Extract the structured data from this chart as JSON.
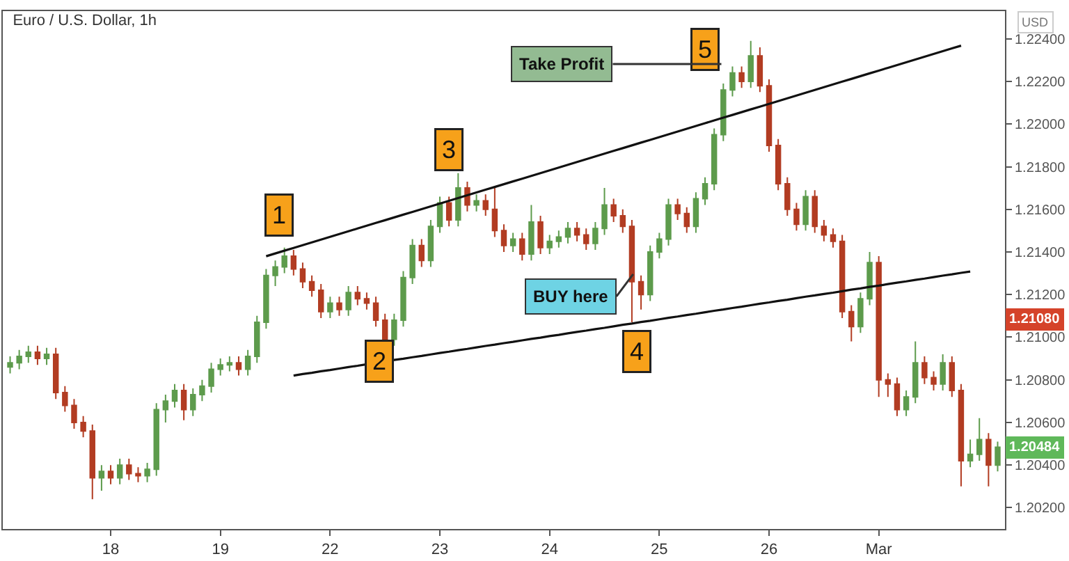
{
  "chart_data": {
    "type": "candlestick",
    "title": "Euro / U.S. Dollar, 1h",
    "categories": [
      null,
      null,
      null,
      null,
      null,
      null,
      null,
      null,
      null,
      null,
      null,
      "18",
      null,
      null,
      null,
      null,
      null,
      null,
      null,
      null,
      null,
      null,
      null,
      "19",
      null,
      null,
      null,
      null,
      null,
      null,
      null,
      null,
      null,
      null,
      null,
      "22",
      null,
      null,
      null,
      null,
      null,
      null,
      null,
      null,
      null,
      null,
      null,
      "23",
      null,
      null,
      null,
      null,
      null,
      null,
      null,
      null,
      null,
      null,
      null,
      "24",
      null,
      null,
      null,
      null,
      null,
      null,
      null,
      null,
      null,
      null,
      null,
      "25",
      null,
      null,
      null,
      null,
      null,
      null,
      null,
      null,
      null,
      null,
      null,
      "26",
      null,
      null,
      null,
      null,
      null,
      null,
      null,
      null,
      null,
      null,
      null,
      "Mar",
      null,
      null,
      null,
      null,
      null,
      null,
      null,
      null,
      null,
      null,
      null,
      null,
      null
    ],
    "ohlc": [
      [
        1.2086,
        1.2091,
        1.2083,
        1.2088
      ],
      [
        1.2088,
        1.2094,
        1.2085,
        1.2091
      ],
      [
        1.2091,
        1.2096,
        1.2088,
        1.2093
      ],
      [
        1.2093,
        1.2096,
        1.2087,
        1.209
      ],
      [
        1.209,
        1.2095,
        1.2087,
        1.2092
      ],
      [
        1.2092,
        1.2095,
        1.2071,
        1.2074
      ],
      [
        1.2074,
        1.2077,
        1.2065,
        1.2068
      ],
      [
        1.2068,
        1.2071,
        1.2057,
        1.206
      ],
      [
        1.206,
        1.2063,
        1.2053,
        1.2056
      ],
      [
        1.2056,
        1.2059,
        1.2024,
        1.2034
      ],
      [
        1.2034,
        1.204,
        1.2028,
        1.2037
      ],
      [
        1.2037,
        1.204,
        1.2031,
        1.2034
      ],
      [
        1.2034,
        1.2043,
        1.2031,
        1.204
      ],
      [
        1.204,
        1.2043,
        1.2033,
        1.2036
      ],
      [
        1.2036,
        1.2039,
        1.2032,
        1.2035
      ],
      [
        1.2035,
        1.2041,
        1.2032,
        1.2038
      ],
      [
        1.2038,
        1.2069,
        1.2035,
        1.2066
      ],
      [
        1.2066,
        1.2073,
        1.206,
        1.207
      ],
      [
        1.207,
        1.2078,
        1.2067,
        1.2075
      ],
      [
        1.2075,
        1.2078,
        1.2061,
        1.2066
      ],
      [
        1.2066,
        1.2076,
        1.2063,
        1.2073
      ],
      [
        1.2073,
        1.208,
        1.207,
        1.2077
      ],
      [
        1.2077,
        1.2088,
        1.2074,
        1.2085
      ],
      [
        1.2085,
        1.209,
        1.2082,
        1.2087
      ],
      [
        1.2087,
        1.2091,
        1.2084,
        1.2088
      ],
      [
        1.2088,
        1.2091,
        1.2082,
        1.2085
      ],
      [
        1.2085,
        1.2094,
        1.2082,
        1.2091
      ],
      [
        1.2091,
        1.211,
        1.2088,
        1.2107
      ],
      [
        1.2107,
        1.2132,
        1.2104,
        1.2129
      ],
      [
        1.2129,
        1.2136,
        1.2124,
        1.2133
      ],
      [
        1.2133,
        1.2142,
        1.213,
        1.2138
      ],
      [
        1.2138,
        1.2141,
        1.2129,
        1.2132
      ],
      [
        1.2132,
        1.2135,
        1.2123,
        1.2126
      ],
      [
        1.2126,
        1.2129,
        1.2119,
        1.2122
      ],
      [
        1.2122,
        1.2125,
        1.2109,
        1.2112
      ],
      [
        1.2112,
        1.2119,
        1.2109,
        1.2116
      ],
      [
        1.2116,
        1.2119,
        1.211,
        1.2113
      ],
      [
        1.2113,
        1.2124,
        1.211,
        1.2121
      ],
      [
        1.2121,
        1.2124,
        1.2115,
        1.2118
      ],
      [
        1.2118,
        1.2121,
        1.2113,
        1.2116
      ],
      [
        1.2116,
        1.2119,
        1.2105,
        1.2108
      ],
      [
        1.2108,
        1.2111,
        1.209,
        1.2099
      ],
      [
        1.2099,
        1.2111,
        1.2096,
        1.2108
      ],
      [
        1.2108,
        1.2131,
        1.2105,
        1.2128
      ],
      [
        1.2128,
        1.2146,
        1.2125,
        1.2143
      ],
      [
        1.2143,
        1.2146,
        1.2133,
        1.2136
      ],
      [
        1.2136,
        1.2155,
        1.2133,
        1.2152
      ],
      [
        1.2152,
        1.2166,
        1.2149,
        1.2163
      ],
      [
        1.2163,
        1.2166,
        1.2152,
        1.2155
      ],
      [
        1.2155,
        1.2177,
        1.2152,
        1.217
      ],
      [
        1.217,
        1.2173,
        1.2159,
        1.2162
      ],
      [
        1.2162,
        1.2167,
        1.2159,
        1.2164
      ],
      [
        1.2164,
        1.2167,
        1.2157,
        1.216
      ],
      [
        1.216,
        1.217,
        1.2147,
        1.215
      ],
      [
        1.215,
        1.2153,
        1.214,
        1.2143
      ],
      [
        1.2143,
        1.2149,
        1.214,
        1.2146
      ],
      [
        1.2146,
        1.2149,
        1.2136,
        1.2139
      ],
      [
        1.2139,
        1.2162,
        1.2136,
        1.2154
      ],
      [
        1.2154,
        1.2157,
        1.2139,
        1.2142
      ],
      [
        1.2142,
        1.2148,
        1.2139,
        1.2145
      ],
      [
        1.2145,
        1.215,
        1.2142,
        1.2147
      ],
      [
        1.2147,
        1.2154,
        1.2144,
        1.2151
      ],
      [
        1.2151,
        1.2154,
        1.2145,
        1.2148
      ],
      [
        1.2148,
        1.2151,
        1.2141,
        1.2144
      ],
      [
        1.2144,
        1.2154,
        1.2141,
        1.2151
      ],
      [
        1.2151,
        1.217,
        1.2148,
        1.2162
      ],
      [
        1.2162,
        1.2165,
        1.2154,
        1.2157
      ],
      [
        1.2157,
        1.216,
        1.2149,
        1.2152
      ],
      [
        1.2152,
        1.2155,
        1.2107,
        1.2126
      ],
      [
        1.2126,
        1.2129,
        1.2113,
        1.212
      ],
      [
        1.212,
        1.2143,
        1.2117,
        1.214
      ],
      [
        1.214,
        1.2149,
        1.2137,
        1.2146
      ],
      [
        1.2146,
        1.2165,
        1.2143,
        1.2162
      ],
      [
        1.2162,
        1.2165,
        1.2155,
        1.2158
      ],
      [
        1.2158,
        1.2161,
        1.2149,
        1.2152
      ],
      [
        1.2152,
        1.2168,
        1.2149,
        1.2165
      ],
      [
        1.2165,
        1.2175,
        1.2162,
        1.2172
      ],
      [
        1.2172,
        1.2198,
        1.2169,
        1.2195
      ],
      [
        1.2195,
        1.2219,
        1.2192,
        1.2216
      ],
      [
        1.2216,
        1.2227,
        1.2213,
        1.2224
      ],
      [
        1.2224,
        1.2227,
        1.2217,
        1.222
      ],
      [
        1.222,
        1.2239,
        1.2217,
        1.2232
      ],
      [
        1.2232,
        1.2236,
        1.2215,
        1.2218
      ],
      [
        1.2218,
        1.2221,
        1.2187,
        1.219
      ],
      [
        1.219,
        1.2193,
        1.2169,
        1.2172
      ],
      [
        1.2172,
        1.2175,
        1.2157,
        1.216
      ],
      [
        1.216,
        1.2163,
        1.215,
        1.2153
      ],
      [
        1.2153,
        1.2169,
        1.215,
        1.2166
      ],
      [
        1.2166,
        1.2169,
        1.2149,
        1.2152
      ],
      [
        1.2152,
        1.2155,
        1.2145,
        1.2148
      ],
      [
        1.2148,
        1.2151,
        1.2142,
        1.2145
      ],
      [
        1.2145,
        1.2148,
        1.2109,
        1.2112
      ],
      [
        1.2112,
        1.2115,
        1.2098,
        1.2105
      ],
      [
        1.2105,
        1.2121,
        1.2102,
        1.2118
      ],
      [
        1.2118,
        1.214,
        1.2115,
        1.2135
      ],
      [
        1.2135,
        1.2138,
        1.2072,
        1.208
      ],
      [
        1.208,
        1.2083,
        1.2072,
        1.2078
      ],
      [
        1.2078,
        1.2081,
        1.2063,
        1.2066
      ],
      [
        1.2066,
        1.2075,
        1.2063,
        1.2072
      ],
      [
        1.2072,
        1.2098,
        1.2069,
        1.2088
      ],
      [
        1.2088,
        1.2091,
        1.2078,
        1.2081
      ],
      [
        1.2081,
        1.2084,
        1.2075,
        1.2078
      ],
      [
        1.2078,
        1.2092,
        1.2075,
        1.2088
      ],
      [
        1.2088,
        1.2091,
        1.2072,
        1.2075
      ],
      [
        1.2075,
        1.2078,
        1.203,
        1.2042
      ],
      [
        1.2042,
        1.2052,
        1.2039,
        1.2045
      ],
      [
        1.2045,
        1.2062,
        1.2042,
        1.2052
      ],
      [
        1.2052,
        1.2055,
        1.203,
        1.204
      ],
      [
        1.204,
        1.2051,
        1.2037,
        1.20484
      ]
    ],
    "series": [
      {
        "type": "line",
        "color": "#111111",
        "values": [
          null,
          null,
          null,
          null,
          null,
          null,
          null,
          null,
          null,
          null,
          null,
          null,
          null,
          null,
          null,
          null,
          null,
          null,
          null,
          null,
          null,
          null,
          null,
          null,
          null,
          null,
          null,
          null,
          1.2138,
          1.21393,
          1.21406,
          1.21419,
          1.21432,
          1.21445,
          1.21458,
          1.21471,
          1.21484,
          1.21497,
          1.2151,
          1.21523,
          1.21536,
          1.21549,
          1.21562,
          1.21575,
          1.21588,
          1.21601,
          1.21614,
          1.21627,
          1.2164,
          1.21653,
          1.21666,
          1.21679,
          1.21692,
          1.21705,
          1.21718,
          1.21731,
          1.21744,
          1.21757,
          1.2177,
          1.21783,
          1.21796,
          1.21809,
          1.21822,
          1.21835,
          1.21848,
          1.21861,
          1.21874,
          1.21887,
          1.219,
          1.21913,
          1.21926,
          1.21939,
          1.21952,
          1.21965,
          1.21978,
          1.21991,
          1.22004,
          1.22017,
          1.2203,
          1.22043,
          1.22056,
          1.22069,
          1.22082,
          1.22095,
          1.22108,
          1.22121,
          1.22134,
          1.22147,
          1.2216,
          1.22173,
          1.22186,
          1.22199,
          1.22212,
          1.22225,
          1.22238,
          1.22251,
          1.22264,
          1.22277,
          1.2229,
          1.22303,
          1.22316,
          1.22329,
          1.22342,
          1.22355,
          1.22368,
          null,
          null,
          null,
          null
        ]
      },
      {
        "type": "line",
        "color": "#111111",
        "values": [
          null,
          null,
          null,
          null,
          null,
          null,
          null,
          null,
          null,
          null,
          null,
          null,
          null,
          null,
          null,
          null,
          null,
          null,
          null,
          null,
          null,
          null,
          null,
          null,
          null,
          null,
          null,
          null,
          null,
          null,
          null,
          1.2082,
          1.20827,
          1.20833,
          1.2084,
          1.20846,
          1.20853,
          1.2086,
          1.20866,
          1.20873,
          1.20879,
          1.20886,
          1.20893,
          1.20899,
          1.20906,
          1.20912,
          1.20919,
          1.20926,
          1.20932,
          1.20939,
          1.20945,
          1.20952,
          1.20959,
          1.20965,
          1.20972,
          1.20978,
          1.20985,
          1.20992,
          1.20998,
          1.21005,
          1.21011,
          1.21018,
          1.21025,
          1.21031,
          1.21038,
          1.21044,
          1.21051,
          1.21058,
          1.21064,
          1.21071,
          1.21077,
          1.21084,
          1.21091,
          1.21097,
          1.21104,
          1.2111,
          1.21117,
          1.21124,
          1.2113,
          1.21137,
          1.21143,
          1.2115,
          1.21157,
          1.21163,
          1.2117,
          1.21176,
          1.21183,
          1.2119,
          1.21196,
          1.21203,
          1.21209,
          1.21216,
          1.21223,
          1.21229,
          1.21236,
          1.21242,
          1.21249,
          1.21256,
          1.21262,
          1.21269,
          1.21275,
          1.21282,
          1.21289,
          1.21295,
          1.21302,
          1.21308,
          null,
          null,
          null
        ]
      }
    ],
    "ylim": [
      1.201,
      1.2253
    ],
    "yticks": [
      {
        "value": 1.202,
        "label": "1.20200"
      },
      {
        "value": 1.204,
        "label": "1.20400"
      },
      {
        "value": 1.206,
        "label": "1.20600"
      },
      {
        "value": 1.208,
        "label": "1.20800"
      },
      {
        "value": 1.21,
        "label": "1.21000"
      },
      {
        "value": 1.212,
        "label": "1.21200"
      },
      {
        "value": 1.214,
        "label": "1.21400"
      },
      {
        "value": 1.216,
        "label": "1.21600"
      },
      {
        "value": 1.218,
        "label": "1.21800"
      },
      {
        "value": 1.22,
        "label": "1.22000"
      },
      {
        "value": 1.222,
        "label": "1.22200"
      },
      {
        "value": 1.224,
        "label": "1.22400"
      }
    ],
    "annotations": [
      "1",
      "2",
      "3",
      "4",
      "5",
      "Take Profit",
      "BUY here",
      {
        "text": "1.21080",
        "y": 1.2108
      },
      {
        "text": "1.20484",
        "y": 1.20484
      },
      "USD"
    ],
    "grid": false
  }
}
